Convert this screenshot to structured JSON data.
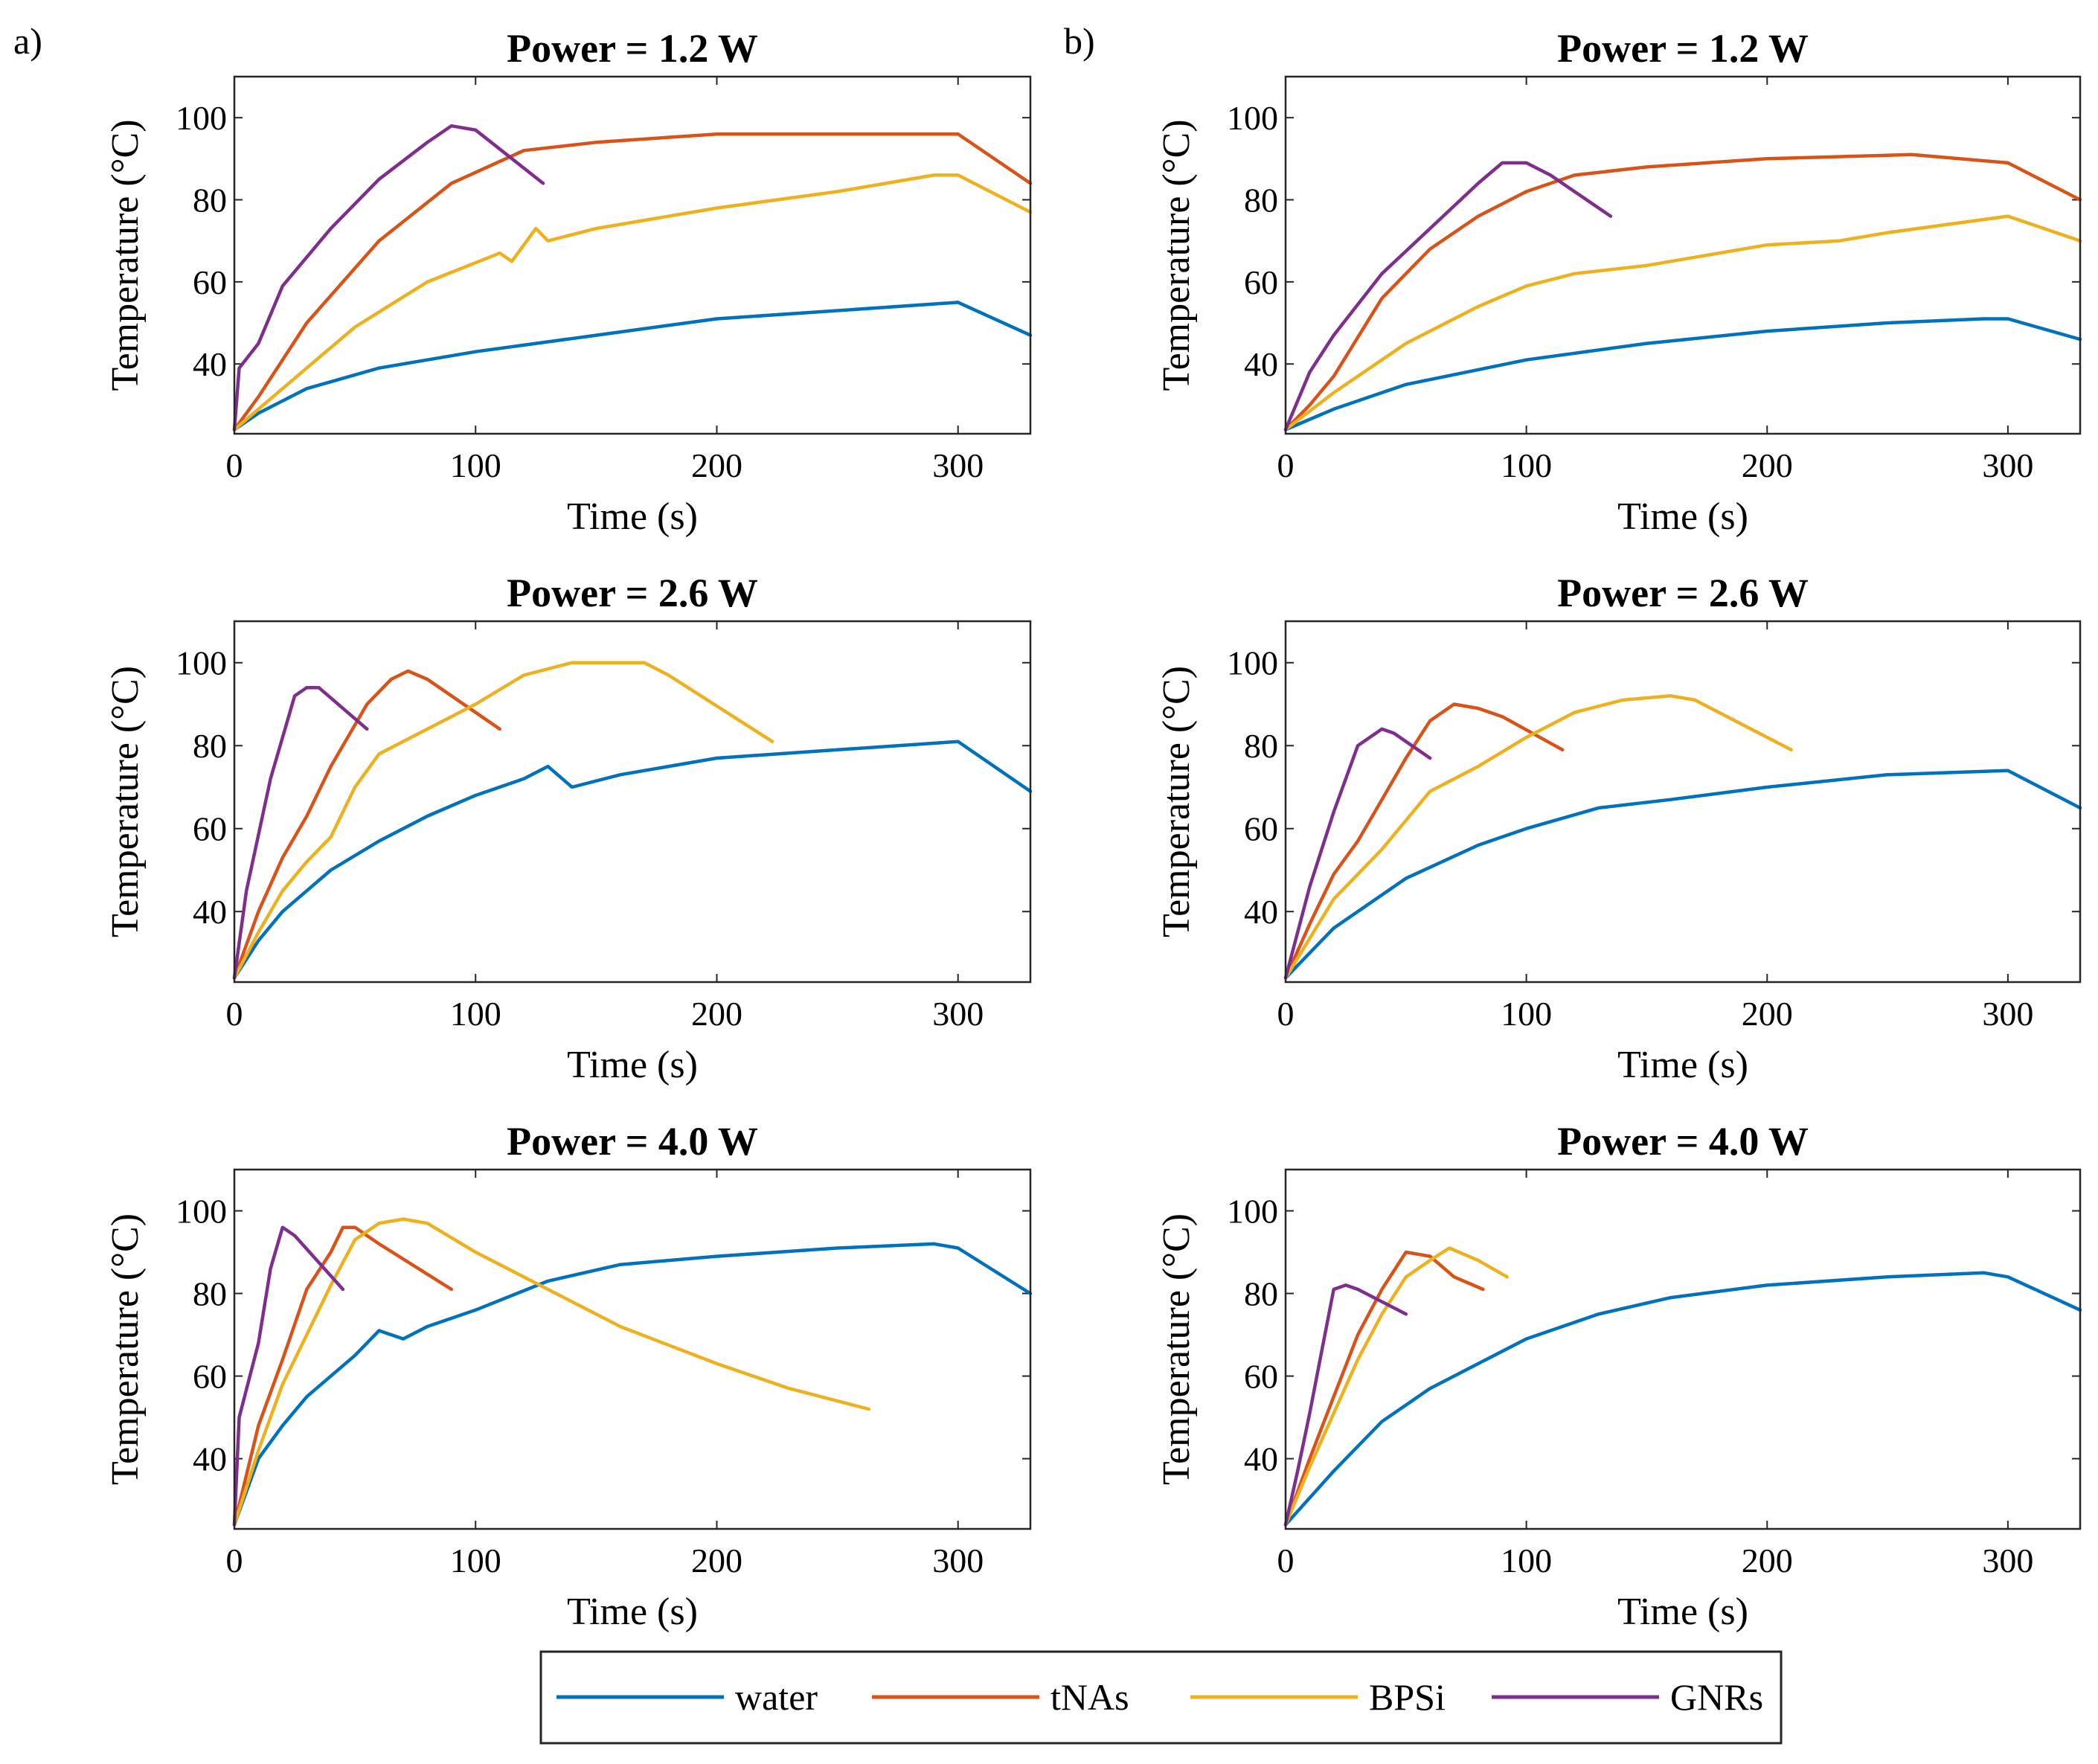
{
  "figure": {
    "panel_labels": [
      "a)",
      "b)"
    ],
    "legend": [
      {
        "name": "water",
        "color": "#0072BD"
      },
      {
        "name": "tNAs",
        "color": "#D95319"
      },
      {
        "name": "BPSi",
        "color": "#EDB120"
      },
      {
        "name": "GNRs",
        "color": "#7E2F8E"
      }
    ]
  },
  "chart_data": [
    {
      "type": "line",
      "panel": "a",
      "title": "Power = 1.2 W",
      "xlabel": "Time (s)",
      "ylabel": "Temperature (°C)",
      "xlim": [
        0,
        330
      ],
      "ylim": [
        23,
        110
      ],
      "xticks": [
        0,
        100,
        200,
        300
      ],
      "yticks": [
        40,
        60,
        80,
        100
      ],
      "series": [
        {
          "name": "water",
          "color": "#0072BD",
          "x": [
            0,
            10,
            30,
            60,
            100,
            150,
            200,
            250,
            300,
            330
          ],
          "y": [
            24,
            28,
            34,
            39,
            43,
            47,
            51,
            53,
            55,
            47
          ]
        },
        {
          "name": "tNAs",
          "color": "#D95319",
          "x": [
            0,
            10,
            30,
            60,
            90,
            120,
            150,
            200,
            250,
            300,
            330
          ],
          "y": [
            24,
            32,
            50,
            70,
            84,
            92,
            94,
            96,
            96,
            96,
            84
          ]
        },
        {
          "name": "BPSi",
          "color": "#EDB120",
          "x": [
            0,
            20,
            50,
            80,
            110,
            115,
            125,
            130,
            150,
            200,
            250,
            290,
            300,
            330
          ],
          "y": [
            24,
            34,
            49,
            60,
            67,
            65,
            73,
            70,
            73,
            78,
            82,
            86,
            86,
            77
          ]
        },
        {
          "name": "GNRs",
          "color": "#7E2F8E",
          "x": [
            0,
            2,
            10,
            20,
            40,
            60,
            80,
            90,
            100,
            128
          ],
          "y": [
            24,
            39,
            45,
            59,
            73,
            85,
            94,
            98,
            97,
            84
          ]
        }
      ]
    },
    {
      "type": "line",
      "panel": "a",
      "title": "Power = 2.6 W",
      "xlabel": "Time (s)",
      "ylabel": "Temperature (°C)",
      "xlim": [
        0,
        330
      ],
      "ylim": [
        23,
        110
      ],
      "xticks": [
        0,
        100,
        200,
        300
      ],
      "yticks": [
        40,
        60,
        80,
        100
      ],
      "series": [
        {
          "name": "water",
          "color": "#0072BD",
          "x": [
            0,
            10,
            20,
            40,
            60,
            80,
            100,
            120,
            130,
            140,
            160,
            200,
            250,
            300,
            330
          ],
          "y": [
            24,
            33,
            40,
            50,
            57,
            63,
            68,
            72,
            75,
            70,
            73,
            77,
            79,
            81,
            69
          ]
        },
        {
          "name": "tNAs",
          "color": "#D95319",
          "x": [
            0,
            10,
            20,
            30,
            40,
            55,
            65,
            72,
            80,
            110
          ],
          "y": [
            24,
            40,
            53,
            63,
            75,
            90,
            96,
            98,
            96,
            84
          ]
        },
        {
          "name": "BPSi",
          "color": "#EDB120",
          "x": [
            0,
            10,
            20,
            30,
            40,
            50,
            60,
            80,
            100,
            120,
            140,
            160,
            170,
            180,
            223
          ],
          "y": [
            24,
            35,
            45,
            52,
            58,
            70,
            78,
            84,
            90,
            97,
            100,
            100,
            100,
            97,
            81
          ]
        },
        {
          "name": "GNRs",
          "color": "#7E2F8E",
          "x": [
            0,
            5,
            15,
            25,
            30,
            35,
            55
          ],
          "y": [
            24,
            45,
            72,
            92,
            94,
            94,
            84
          ]
        }
      ]
    },
    {
      "type": "line",
      "panel": "a",
      "title": "Power = 4.0 W",
      "xlabel": "Time (s)",
      "ylabel": "Temperature (°C)",
      "xlim": [
        0,
        330
      ],
      "ylim": [
        23,
        110
      ],
      "xticks": [
        0,
        100,
        200,
        300
      ],
      "yticks": [
        40,
        60,
        80,
        100
      ],
      "series": [
        {
          "name": "water",
          "color": "#0072BD",
          "x": [
            0,
            10,
            20,
            30,
            40,
            50,
            60,
            70,
            80,
            100,
            130,
            160,
            200,
            250,
            290,
            300,
            330
          ],
          "y": [
            24,
            40,
            48,
            55,
            60,
            65,
            71,
            69,
            72,
            76,
            83,
            87,
            89,
            91,
            92,
            91,
            80
          ]
        },
        {
          "name": "tNAs",
          "color": "#D95319",
          "x": [
            0,
            10,
            20,
            30,
            40,
            45,
            50,
            60,
            90
          ],
          "y": [
            24,
            48,
            64,
            81,
            90,
            96,
            96,
            92,
            81
          ]
        },
        {
          "name": "BPSi",
          "color": "#EDB120",
          "x": [
            0,
            10,
            20,
            30,
            40,
            50,
            60,
            70,
            80,
            100,
            130,
            160,
            200,
            230,
            263
          ],
          "y": [
            24,
            42,
            58,
            70,
            82,
            93,
            97,
            98,
            97,
            90,
            81,
            72,
            63,
            57,
            52
          ]
        },
        {
          "name": "GNRs",
          "color": "#7E2F8E",
          "x": [
            0,
            2,
            10,
            15,
            20,
            25,
            45
          ],
          "y": [
            24,
            50,
            68,
            86,
            96,
            94,
            81
          ]
        }
      ]
    },
    {
      "type": "line",
      "panel": "b",
      "title": "Power = 1.2 W",
      "xlabel": "Time (s)",
      "ylabel": "Temperature (°C)",
      "xlim": [
        0,
        330
      ],
      "ylim": [
        23,
        110
      ],
      "xticks": [
        0,
        100,
        200,
        300
      ],
      "yticks": [
        40,
        60,
        80,
        100
      ],
      "series": [
        {
          "name": "water",
          "color": "#0072BD",
          "x": [
            0,
            20,
            50,
            100,
            150,
            200,
            250,
            290,
            300,
            330
          ],
          "y": [
            24,
            29,
            35,
            41,
            45,
            48,
            50,
            51,
            51,
            46
          ]
        },
        {
          "name": "tNAs",
          "color": "#D95319",
          "x": [
            0,
            10,
            20,
            40,
            60,
            80,
            100,
            120,
            150,
            200,
            260,
            300,
            330
          ],
          "y": [
            24,
            30,
            37,
            56,
            68,
            76,
            82,
            86,
            88,
            90,
            91,
            89,
            80
          ]
        },
        {
          "name": "BPSi",
          "color": "#EDB120",
          "x": [
            0,
            20,
            50,
            80,
            100,
            120,
            150,
            200,
            230,
            250,
            300,
            330
          ],
          "y": [
            24,
            33,
            45,
            54,
            59,
            62,
            64,
            69,
            70,
            72,
            76,
            70
          ]
        },
        {
          "name": "GNRs",
          "color": "#7E2F8E",
          "x": [
            0,
            10,
            20,
            40,
            60,
            80,
            90,
            100,
            110,
            135
          ],
          "y": [
            24,
            38,
            47,
            62,
            73,
            84,
            89,
            89,
            86,
            76
          ]
        }
      ]
    },
    {
      "type": "line",
      "panel": "b",
      "title": "Power = 2.6 W",
      "xlabel": "Time (s)",
      "ylabel": "Temperature (°C)",
      "xlim": [
        0,
        330
      ],
      "ylim": [
        23,
        110
      ],
      "xticks": [
        0,
        100,
        200,
        300
      ],
      "yticks": [
        40,
        60,
        80,
        100
      ],
      "series": [
        {
          "name": "water",
          "color": "#0072BD",
          "x": [
            0,
            20,
            50,
            80,
            100,
            130,
            160,
            200,
            250,
            300,
            330
          ],
          "y": [
            24,
            36,
            48,
            56,
            60,
            65,
            67,
            70,
            73,
            74,
            65
          ]
        },
        {
          "name": "tNAs",
          "color": "#D95319",
          "x": [
            0,
            10,
            20,
            30,
            40,
            50,
            60,
            70,
            80,
            90,
            115
          ],
          "y": [
            24,
            37,
            49,
            57,
            67,
            77,
            86,
            90,
            89,
            87,
            79
          ]
        },
        {
          "name": "BPSi",
          "color": "#EDB120",
          "x": [
            0,
            20,
            40,
            60,
            80,
            100,
            120,
            140,
            160,
            170,
            180,
            210
          ],
          "y": [
            24,
            43,
            55,
            69,
            75,
            82,
            88,
            91,
            92,
            91,
            88,
            79
          ]
        },
        {
          "name": "GNRs",
          "color": "#7E2F8E",
          "x": [
            0,
            10,
            20,
            30,
            40,
            45,
            60
          ],
          "y": [
            24,
            46,
            64,
            80,
            84,
            83,
            77
          ]
        }
      ]
    },
    {
      "type": "line",
      "panel": "b",
      "title": "Power = 4.0 W",
      "xlabel": "Time (s)",
      "ylabel": "Temperature (°C)",
      "xlim": [
        0,
        330
      ],
      "ylim": [
        23,
        110
      ],
      "xticks": [
        0,
        100,
        200,
        300
      ],
      "yticks": [
        40,
        60,
        80,
        100
      ],
      "series": [
        {
          "name": "water",
          "color": "#0072BD",
          "x": [
            0,
            20,
            40,
            60,
            80,
            100,
            130,
            160,
            200,
            250,
            290,
            300,
            330
          ],
          "y": [
            24,
            37,
            49,
            57,
            63,
            69,
            75,
            79,
            82,
            84,
            85,
            84,
            76
          ]
        },
        {
          "name": "tNAs",
          "color": "#D95319",
          "x": [
            0,
            10,
            20,
            30,
            40,
            50,
            60,
            70,
            82
          ],
          "y": [
            24,
            40,
            55,
            70,
            81,
            90,
            89,
            84,
            81
          ]
        },
        {
          "name": "BPSi",
          "color": "#EDB120",
          "x": [
            0,
            10,
            20,
            30,
            40,
            50,
            60,
            68,
            80,
            92
          ],
          "y": [
            24,
            38,
            51,
            64,
            75,
            84,
            88,
            91,
            88,
            84
          ]
        },
        {
          "name": "GNRs",
          "color": "#7E2F8E",
          "x": [
            0,
            5,
            10,
            15,
            20,
            25,
            30,
            50
          ],
          "y": [
            24,
            37,
            51,
            66,
            81,
            82,
            81,
            75
          ]
        }
      ]
    }
  ]
}
